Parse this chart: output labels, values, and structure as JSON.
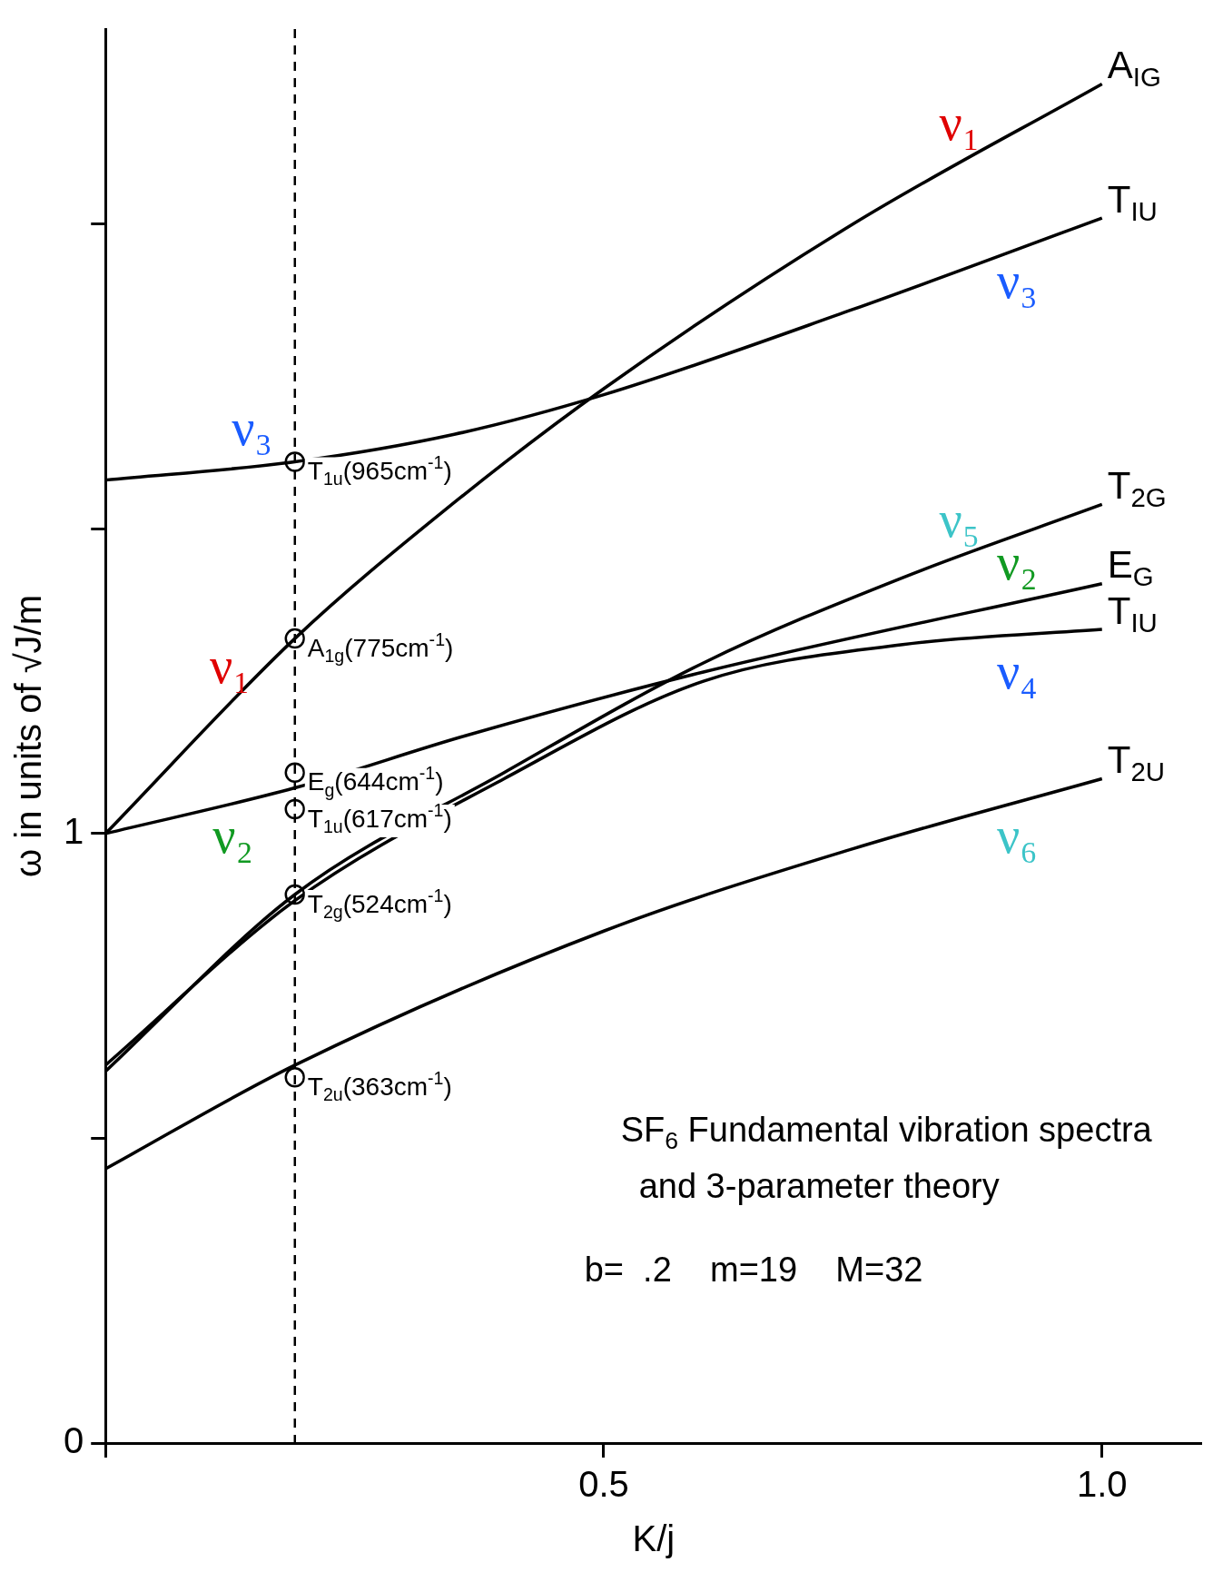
{
  "chart_data": {
    "type": "line",
    "xlabel": "K/j",
    "ylabel": "ω in units of √J/m",
    "xlim": [
      0,
      1.1
    ],
    "ylim": [
      0,
      2.32
    ],
    "xticks": [
      {
        "value": 0,
        "label": null
      },
      0.5,
      {
        "value": 1,
        "label": "1.0"
      }
    ],
    "yticks": [
      0,
      {
        "value": 0.5,
        "label": null
      },
      1,
      {
        "value": 1.5,
        "label": null
      },
      {
        "value": 2,
        "label": null
      }
    ],
    "grid": false,
    "legend": false,
    "marker": "none",
    "series": [
      {
        "name": "A$_{IG}$",
        "color": "#000000",
        "x": [
          0,
          0.19,
          0.34,
          0.5,
          0.75,
          1.0
        ],
        "values": [
          1.0,
          1.32,
          1.53,
          1.73,
          2.0,
          2.23
        ]
      },
      {
        "name": "T$_{IU}$",
        "color": "#000000",
        "x": [
          0,
          0.19,
          0.35,
          0.5,
          0.75,
          1.0
        ],
        "values": [
          1.58,
          1.61,
          1.655,
          1.72,
          1.86,
          2.01
        ]
      },
      {
        "name": "T$_{2G}$",
        "color": "#000000",
        "x": [
          0,
          0.19,
          0.4,
          0.6,
          0.8,
          1.0
        ],
        "values": [
          0.61,
          0.9,
          1.1,
          1.28,
          1.42,
          1.54
        ]
      },
      {
        "name": "E$_{G}$",
        "color": "#000000",
        "x": [
          0,
          0.19,
          0.36,
          0.6,
          1.0
        ],
        "values": [
          1.0,
          1.075,
          1.16,
          1.265,
          1.41
        ]
      },
      {
        "name": "T$_{IU}$",
        "color": "#000000",
        "x": [
          0,
          0.19,
          0.4,
          0.6,
          0.8,
          1.0
        ],
        "values": [
          0.62,
          0.89,
          1.09,
          1.25,
          1.31,
          1.335
        ]
      },
      {
        "name": "T$_{2U}$",
        "color": "#000000",
        "x": [
          0,
          0.19,
          0.5,
          0.75,
          1.0
        ],
        "values": [
          0.45,
          0.62,
          0.84,
          0.975,
          1.09
        ]
      },
      {
        "type": "scatter",
        "marker": "circle",
        "color": "#000000",
        "x": [
          0.19,
          0.19,
          0.19,
          0.19,
          0.19,
          0.19
        ],
        "values": [
          1.61,
          1.32,
          1.1,
          1.04,
          0.9,
          0.6
        ]
      }
    ],
    "ref_lines": [
      {
        "axis": "x",
        "value": 0.19,
        "color": "#000000",
        "line_style": "dashed"
      }
    ],
    "annotations": [
      {
        "text": "ν₁",
        "x": 0.857,
        "y": 2.1
      },
      {
        "text": "ν₃",
        "x": 0.915,
        "y": 1.96
      },
      {
        "text": "ν₃",
        "x": 0.147,
        "y": 1.6
      },
      {
        "text": "ν₁",
        "x": 0.125,
        "y": 1.21
      },
      {
        "text": "ν₅",
        "x": 0.857,
        "y": 1.45
      },
      {
        "text": "ν₂",
        "x": 0.915,
        "y": 1.38
      },
      {
        "text": "ν₄",
        "x": 0.915,
        "y": 1.32
      },
      {
        "text": "ν₂",
        "x": 0.128,
        "y": 1.05
      },
      {
        "text": "ν₆",
        "x": 0.915,
        "y": 1.05
      },
      {
        "text": "T$_{1u}$(965cm$^{-1}$)",
        "x": 0.19,
        "y": 1.61
      },
      {
        "text": "A$_{1g}$(775cm$^{-1}$)",
        "x": 0.19,
        "y": 1.32
      },
      {
        "text": "E$_{g}$(644cm$^{-1}$)",
        "x": 0.19,
        "y": 1.1
      },
      {
        "text": "T$_{1u}$(617cm$^{-1}$)",
        "x": 0.19,
        "y": 1.04
      },
      {
        "text": "T$_{2g}$(524cm$^{-1}$)",
        "x": 0.19,
        "y": 0.9
      },
      {
        "text": "T$_{2u}$(363cm$^{-1}$)",
        "x": 0.19,
        "y": 0.6
      },
      "SF$_{6}$ Fundamental vibration spectra and 3-parameter theory",
      "b=  .2    m=19    M=32"
    ]
  }
}
